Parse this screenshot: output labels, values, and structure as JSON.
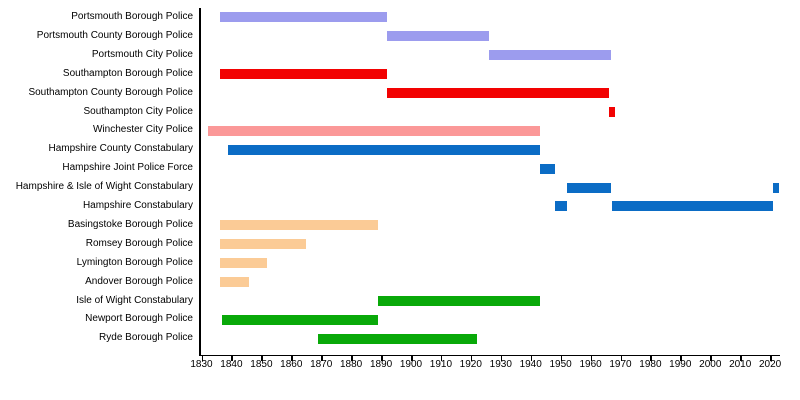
{
  "background": "#ffffff",
  "axis_color": "#000000",
  "chart_data": {
    "type": "bar",
    "subtype": "gantt-timeline",
    "title": "",
    "xlabel": "",
    "ylabel": "",
    "grid": false,
    "legend": false,
    "xlim": [
      1829.5,
      2023.3
    ],
    "x_ticks": [
      1830,
      1840,
      1850,
      1860,
      1870,
      1880,
      1890,
      1900,
      1910,
      1920,
      1930,
      1940,
      1950,
      1960,
      1970,
      1980,
      1990,
      2000,
      2010,
      2020
    ],
    "rows": [
      {
        "label": "Portsmouth Borough Police",
        "color": "#9c9cee",
        "segments": [
          [
            1836,
            1892
          ]
        ]
      },
      {
        "label": "Portsmouth County Borough Police",
        "color": "#9c9cee",
        "segments": [
          [
            1892,
            1926
          ]
        ]
      },
      {
        "label": "Portsmouth City Police",
        "color": "#9c9cee",
        "segments": [
          [
            1926,
            1967
          ]
        ]
      },
      {
        "label": "Southampton Borough Police",
        "color": "#f20202",
        "segments": [
          [
            1836,
            1892
          ]
        ]
      },
      {
        "label": "Southampton County Borough Police",
        "color": "#f20202",
        "segments": [
          [
            1892,
            1966
          ]
        ]
      },
      {
        "label": "Southampton City Police",
        "color": "#f20202",
        "segments": [
          [
            1966,
            1968
          ]
        ]
      },
      {
        "label": "Winchester City Police",
        "color": "#fb9898",
        "segments": [
          [
            1832,
            1943
          ]
        ]
      },
      {
        "label": "Hampshire County Constabulary",
        "color": "#0b6cc5",
        "segments": [
          [
            1839,
            1943
          ]
        ]
      },
      {
        "label": "Hampshire Joint Police Force",
        "color": "#0b6cc5",
        "segments": [
          [
            1943,
            1948
          ]
        ]
      },
      {
        "label": "Hampshire & Isle of Wight Constabulary",
        "color": "#0b6cc5",
        "segments": [
          [
            1952,
            1967
          ],
          [
            2021,
            2023
          ]
        ]
      },
      {
        "label": "Hampshire Constabulary",
        "color": "#0b6cc5",
        "segments": [
          [
            1948,
            1952
          ],
          [
            1967,
            2021
          ]
        ]
      },
      {
        "label": "Basingstoke Borough Police",
        "color": "#fbcb96",
        "segments": [
          [
            1836,
            1889
          ]
        ]
      },
      {
        "label": "Romsey Borough Police",
        "color": "#fbcb96",
        "segments": [
          [
            1836,
            1865
          ]
        ]
      },
      {
        "label": "Lymington Borough Police",
        "color": "#fbcb96",
        "segments": [
          [
            1836,
            1852
          ]
        ]
      },
      {
        "label": "Andover Borough Police",
        "color": "#fbcb96",
        "segments": [
          [
            1836,
            1846
          ]
        ]
      },
      {
        "label": "Isle of Wight Constabulary",
        "color": "#09a909",
        "segments": [
          [
            1889,
            1943
          ]
        ]
      },
      {
        "label": "Newport Borough Police",
        "color": "#09a909",
        "segments": [
          [
            1837,
            1889
          ]
        ]
      },
      {
        "label": "Ryde Borough Police",
        "color": "#09a909",
        "segments": [
          [
            1869,
            1922
          ]
        ]
      }
    ]
  }
}
